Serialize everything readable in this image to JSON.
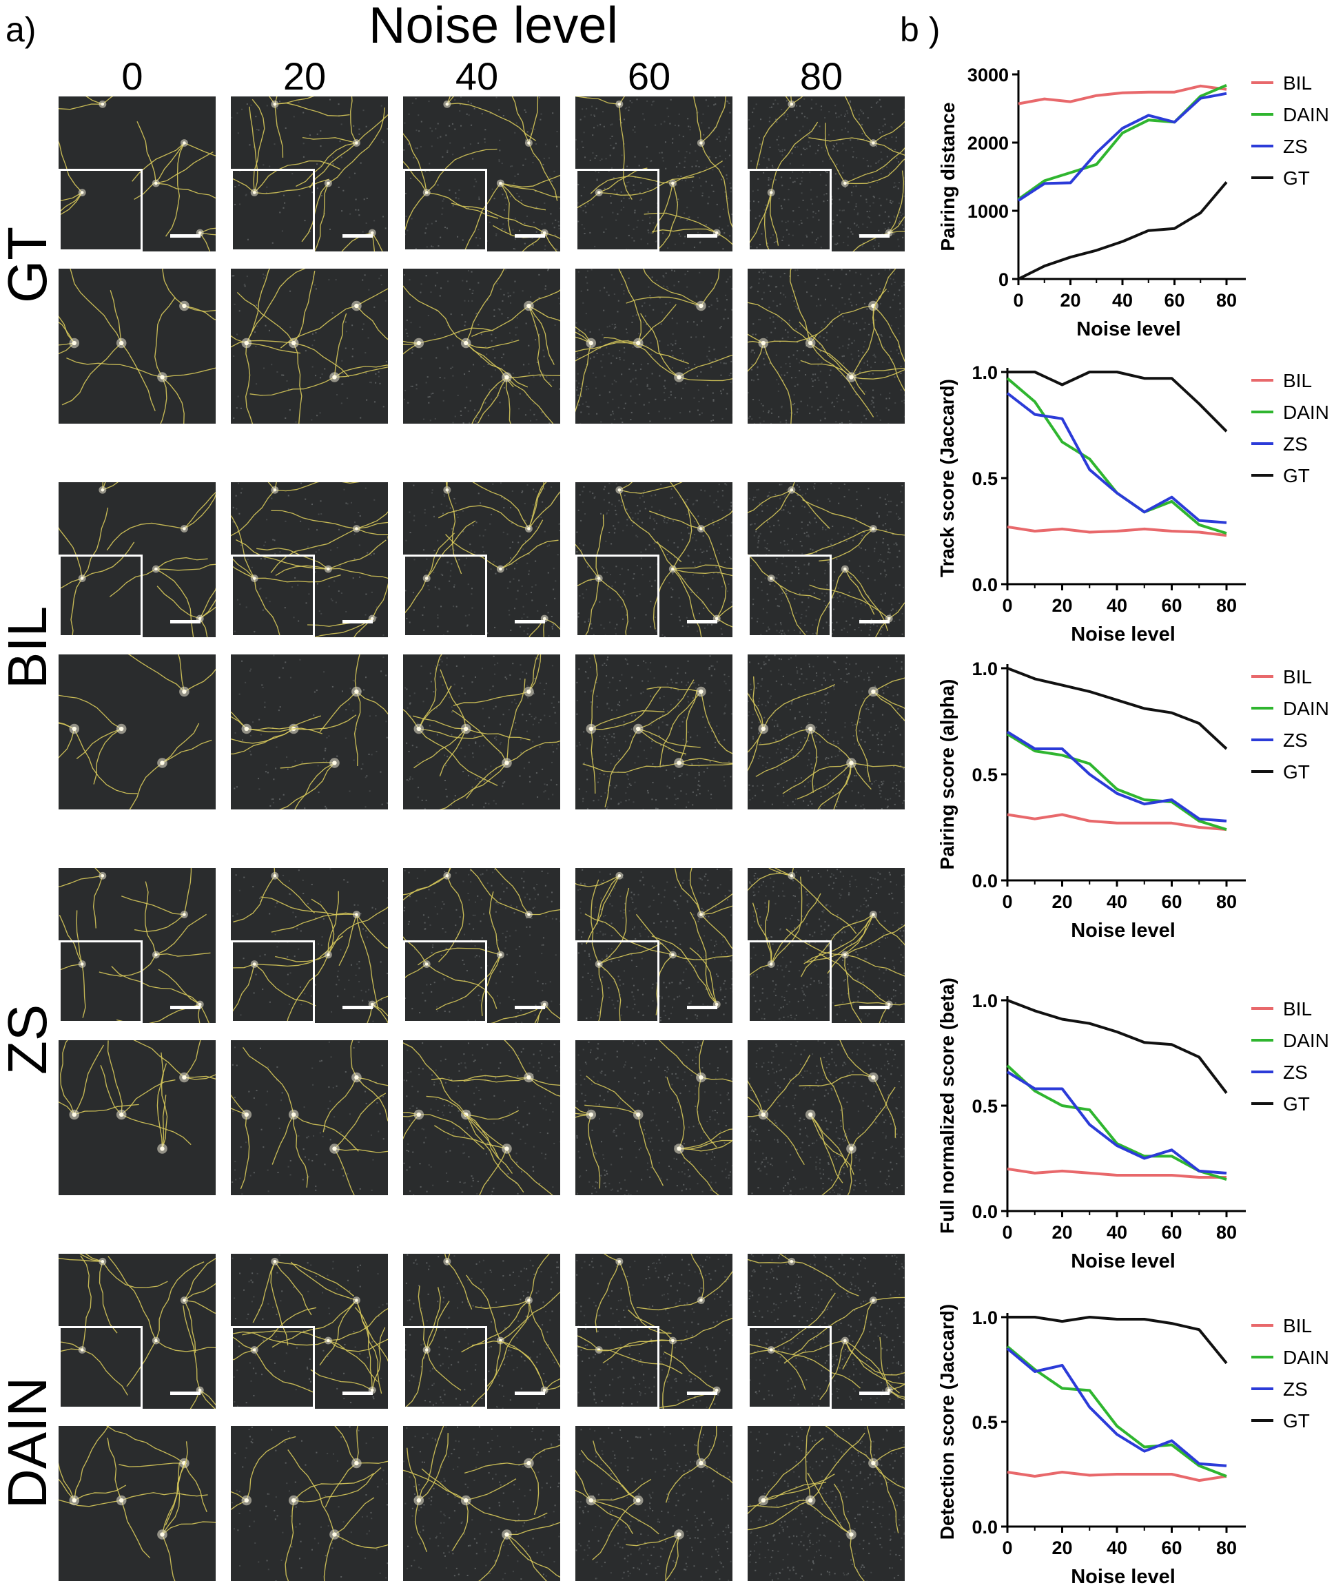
{
  "panel_labels": {
    "a": "a)",
    "b": "b )"
  },
  "grid": {
    "title": "Noise level",
    "columns": [
      "0",
      "20",
      "40",
      "60",
      "80"
    ],
    "rows": [
      "GT",
      "BIL",
      "ZS",
      "DAIN"
    ]
  },
  "colors": {
    "BIL": "#e8686b",
    "DAIN": "#2fb52f",
    "ZS": "#2b3bd8",
    "GT": "#111111",
    "tile_bg": "#2a2c2d",
    "neurite": "#d6c85a"
  },
  "chart_data": [
    {
      "type": "line",
      "xlabel": "Noise level",
      "ylabel": "Pairing distance",
      "xlim": [
        0,
        80
      ],
      "ylim": [
        0,
        3000
      ],
      "xticks": [
        "0",
        "20",
        "40",
        "60",
        "80"
      ],
      "yticks": [
        "0",
        "1000",
        "2000",
        "3000"
      ],
      "legend": "right",
      "x": [
        0,
        10,
        20,
        30,
        40,
        50,
        60,
        70,
        80
      ],
      "series": [
        {
          "name": "BIL",
          "values": [
            2570,
            2640,
            2600,
            2690,
            2730,
            2740,
            2740,
            2830,
            2780
          ]
        },
        {
          "name": "DAIN",
          "values": [
            1170,
            1440,
            1560,
            1680,
            2140,
            2330,
            2300,
            2680,
            2840
          ]
        },
        {
          "name": "ZS",
          "values": [
            1150,
            1400,
            1410,
            1850,
            2210,
            2400,
            2300,
            2650,
            2720
          ]
        },
        {
          "name": "GT",
          "values": [
            0,
            190,
            320,
            420,
            550,
            710,
            740,
            970,
            1420
          ]
        }
      ]
    },
    {
      "type": "line",
      "xlabel": "Noise level",
      "ylabel": "Track score (Jaccard)",
      "xlim": [
        0,
        80
      ],
      "ylim": [
        0,
        1.0
      ],
      "xticks": [
        "0",
        "20",
        "40",
        "60",
        "80"
      ],
      "yticks": [
        "0.0",
        "0.5",
        "1.0"
      ],
      "legend": "right",
      "x": [
        0,
        10,
        20,
        30,
        40,
        50,
        60,
        70,
        80
      ],
      "series": [
        {
          "name": "BIL",
          "values": [
            0.27,
            0.25,
            0.26,
            0.245,
            0.25,
            0.26,
            0.25,
            0.245,
            0.23
          ]
        },
        {
          "name": "DAIN",
          "values": [
            0.97,
            0.86,
            0.67,
            0.59,
            0.43,
            0.34,
            0.39,
            0.28,
            0.24
          ]
        },
        {
          "name": "ZS",
          "values": [
            0.9,
            0.8,
            0.78,
            0.54,
            0.43,
            0.34,
            0.41,
            0.3,
            0.29
          ]
        },
        {
          "name": "GT",
          "values": [
            1.0,
            1.0,
            0.94,
            1.0,
            1.0,
            0.97,
            0.97,
            0.85,
            0.72
          ]
        }
      ]
    },
    {
      "type": "line",
      "xlabel": "Noise level",
      "ylabel": "Pairing score (alpha)",
      "xlim": [
        0,
        80
      ],
      "ylim": [
        0,
        1.0
      ],
      "xticks": [
        "0",
        "20",
        "40",
        "60",
        "80"
      ],
      "yticks": [
        "0.0",
        "0.5",
        "1.0"
      ],
      "legend": "right",
      "x": [
        0,
        10,
        20,
        30,
        40,
        50,
        60,
        70,
        80
      ],
      "series": [
        {
          "name": "BIL",
          "values": [
            0.31,
            0.29,
            0.31,
            0.28,
            0.27,
            0.27,
            0.27,
            0.25,
            0.24
          ]
        },
        {
          "name": "DAIN",
          "values": [
            0.69,
            0.61,
            0.59,
            0.55,
            0.43,
            0.38,
            0.37,
            0.28,
            0.24
          ]
        },
        {
          "name": "ZS",
          "values": [
            0.7,
            0.62,
            0.62,
            0.5,
            0.41,
            0.36,
            0.38,
            0.29,
            0.28
          ]
        },
        {
          "name": "GT",
          "values": [
            1.0,
            0.95,
            0.92,
            0.89,
            0.85,
            0.81,
            0.79,
            0.74,
            0.62
          ]
        }
      ]
    },
    {
      "type": "line",
      "xlabel": "Noise level",
      "ylabel": "Full normalized score (beta)",
      "xlim": [
        0,
        80
      ],
      "ylim": [
        0,
        1.0
      ],
      "xticks": [
        "0",
        "20",
        "40",
        "60",
        "80"
      ],
      "yticks": [
        "0.0",
        "0.5",
        "1.0"
      ],
      "legend": "right",
      "x": [
        0,
        10,
        20,
        30,
        40,
        50,
        60,
        70,
        80
      ],
      "series": [
        {
          "name": "BIL",
          "values": [
            0.2,
            0.18,
            0.19,
            0.18,
            0.17,
            0.17,
            0.17,
            0.16,
            0.16
          ]
        },
        {
          "name": "DAIN",
          "values": [
            0.69,
            0.57,
            0.5,
            0.48,
            0.32,
            0.26,
            0.26,
            0.19,
            0.15
          ]
        },
        {
          "name": "ZS",
          "values": [
            0.66,
            0.58,
            0.58,
            0.41,
            0.31,
            0.25,
            0.29,
            0.19,
            0.18
          ]
        },
        {
          "name": "GT",
          "values": [
            1.0,
            0.95,
            0.91,
            0.89,
            0.85,
            0.8,
            0.79,
            0.73,
            0.56
          ]
        }
      ]
    },
    {
      "type": "line",
      "xlabel": "Noise level",
      "ylabel": "Detection score (Jaccard)",
      "xlim": [
        0,
        80
      ],
      "ylim": [
        0,
        1.0
      ],
      "xticks": [
        "0",
        "20",
        "40",
        "60",
        "80"
      ],
      "yticks": [
        "0.0",
        "0.5",
        "1.0"
      ],
      "legend": "right",
      "x": [
        0,
        10,
        20,
        30,
        40,
        50,
        60,
        70,
        80
      ],
      "series": [
        {
          "name": "BIL",
          "values": [
            0.26,
            0.24,
            0.26,
            0.245,
            0.25,
            0.25,
            0.25,
            0.22,
            0.24
          ]
        },
        {
          "name": "DAIN",
          "values": [
            0.86,
            0.75,
            0.66,
            0.65,
            0.48,
            0.38,
            0.39,
            0.29,
            0.24
          ]
        },
        {
          "name": "ZS",
          "values": [
            0.85,
            0.74,
            0.77,
            0.57,
            0.44,
            0.36,
            0.41,
            0.3,
            0.29
          ]
        },
        {
          "name": "GT",
          "values": [
            1.0,
            1.0,
            0.98,
            1.0,
            0.99,
            0.99,
            0.97,
            0.94,
            0.78
          ]
        }
      ]
    }
  ]
}
